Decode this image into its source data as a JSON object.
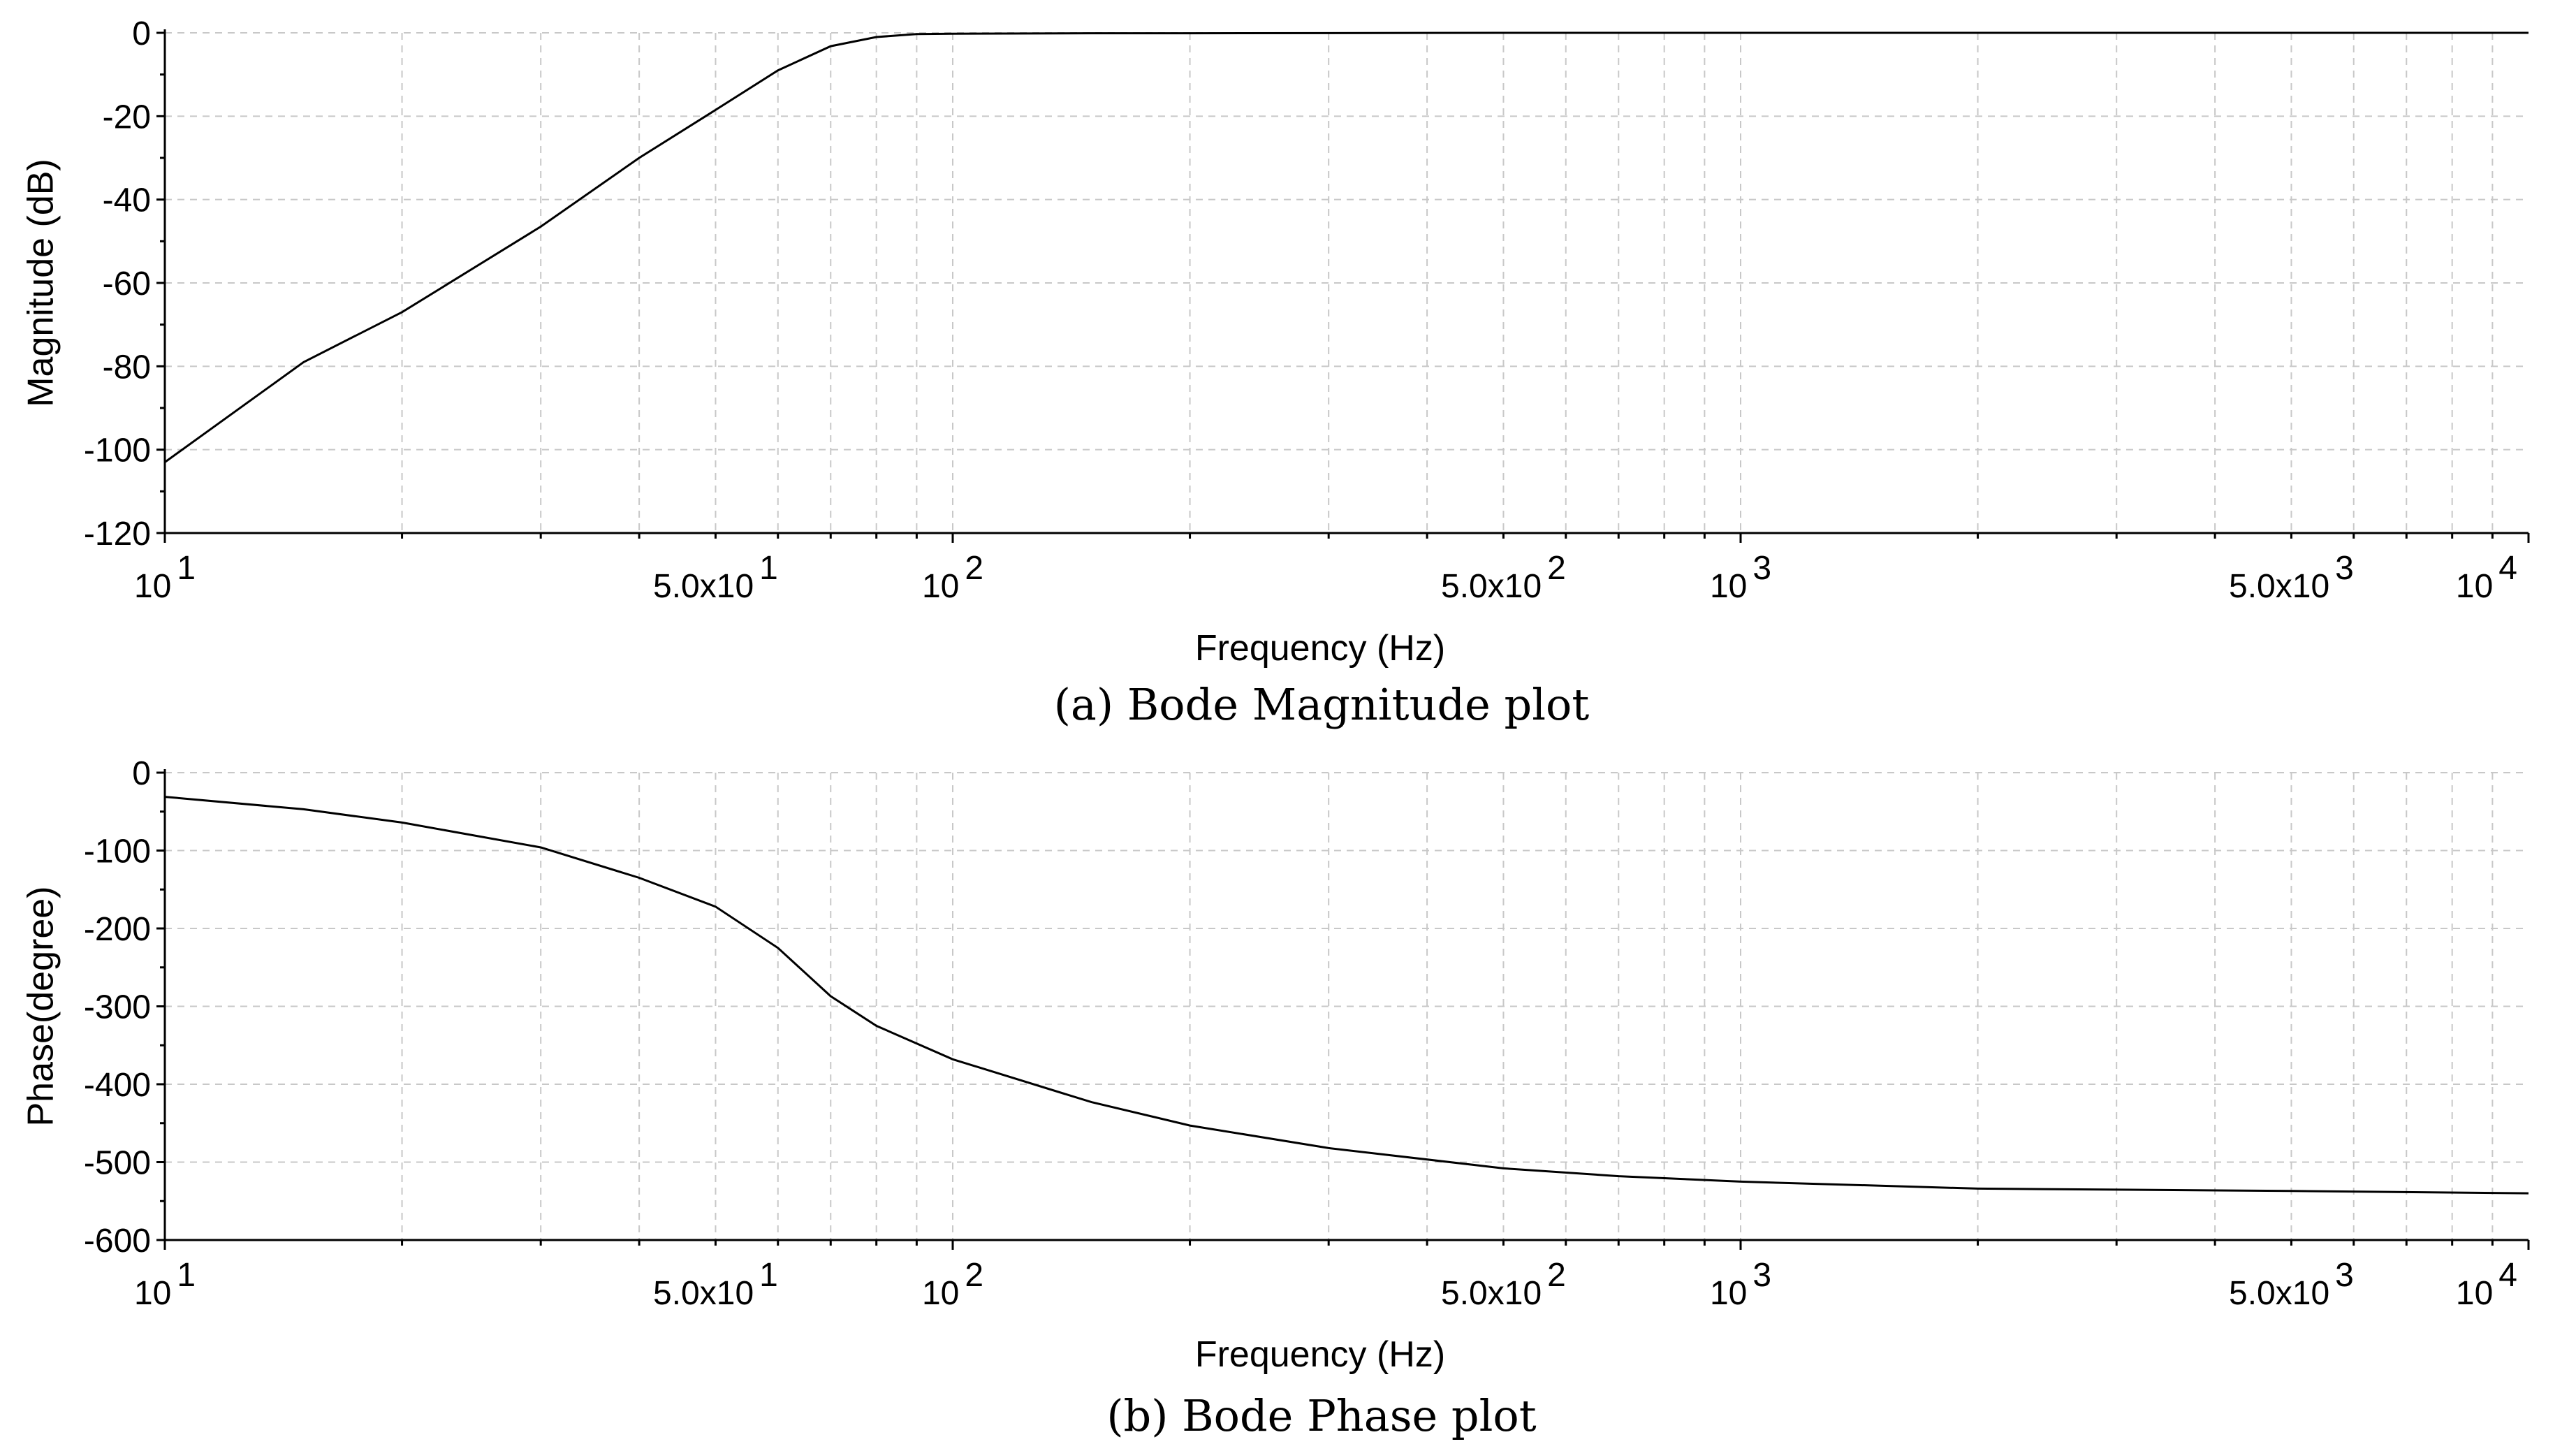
{
  "chart_data": [
    {
      "type": "line",
      "id": "magnitude",
      "caption": "(a) Bode Magnitude plot",
      "xlabel": "Frequency (Hz)",
      "ylabel": "Magnitude (dB)",
      "xscale": "log",
      "xlim": [
        10,
        10000
      ],
      "ylim": [
        -120,
        0
      ],
      "yticks": [
        0,
        -20,
        -40,
        -60,
        -80,
        -100,
        -120
      ],
      "xtick_labels": [
        {
          "value": 10,
          "base": "10",
          "exp": "1"
        },
        {
          "value": 50,
          "base": "5.0x10",
          "exp": "1"
        },
        {
          "value": 100,
          "base": "10",
          "exp": "2"
        },
        {
          "value": 500,
          "base": "5.0x10",
          "exp": "2"
        },
        {
          "value": 1000,
          "base": "10",
          "exp": "3"
        },
        {
          "value": 5000,
          "base": "5.0x10",
          "exp": "3"
        },
        {
          "value": 10000,
          "base": "10",
          "exp": "4"
        }
      ],
      "grid": true,
      "series": [
        {
          "x": [
            10,
            15,
            20,
            30,
            40,
            50,
            60,
            70,
            80,
            90,
            100,
            150,
            200,
            500,
            1000,
            10000
          ],
          "y": [
            -103,
            -79,
            -67,
            -46.5,
            -30,
            -18.5,
            -9,
            -3.2,
            -1,
            -0.3,
            -0.2,
            -0.1,
            -0.1,
            0,
            0,
            0
          ]
        }
      ]
    },
    {
      "type": "line",
      "id": "phase",
      "caption": "(b) Bode Phase plot",
      "xlabel": "Frequency (Hz)",
      "ylabel": "Phase(degree)",
      "xscale": "log",
      "xlim": [
        10,
        10000
      ],
      "ylim": [
        -600,
        0
      ],
      "yticks": [
        0,
        -100,
        -200,
        -300,
        -400,
        -500,
        -600
      ],
      "xtick_labels": [
        {
          "value": 10,
          "base": "10",
          "exp": "1"
        },
        {
          "value": 50,
          "base": "5.0x10",
          "exp": "1"
        },
        {
          "value": 100,
          "base": "10",
          "exp": "2"
        },
        {
          "value": 500,
          "base": "5.0x10",
          "exp": "2"
        },
        {
          "value": 1000,
          "base": "10",
          "exp": "3"
        },
        {
          "value": 5000,
          "base": "5.0x10",
          "exp": "3"
        },
        {
          "value": 10000,
          "base": "10",
          "exp": "4"
        }
      ],
      "grid": true,
      "series": [
        {
          "x": [
            10,
            15,
            20,
            30,
            40,
            50,
            60,
            70,
            80,
            100,
            150,
            200,
            300,
            500,
            700,
            1000,
            2000,
            5000,
            10000
          ],
          "y": [
            -31,
            -47,
            -64,
            -96,
            -135,
            -172,
            -225,
            -287,
            -325,
            -368,
            -423,
            -453,
            -482,
            -508,
            -518,
            -525,
            -534,
            -537,
            -540
          ]
        }
      ]
    }
  ]
}
